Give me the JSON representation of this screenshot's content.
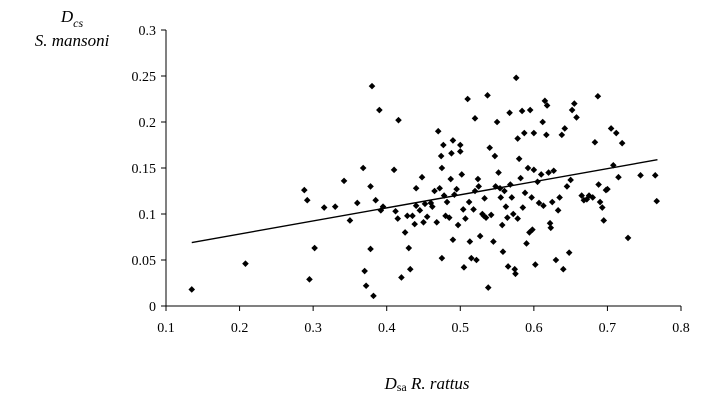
{
  "chart_data": {
    "type": "scatter",
    "title": "",
    "ylabel": {
      "main": "D",
      "sub": "cs",
      "species": "S. mansoni"
    },
    "xlabel": {
      "main": "D",
      "sub": "sa",
      "species": "R. rattus"
    },
    "xlim": [
      0.1,
      0.8
    ],
    "ylim": [
      0,
      0.3
    ],
    "x_ticks": [
      "0.1",
      "0.2",
      "0.3",
      "0.4",
      "0.5",
      "0.6",
      "0.7",
      "0.8"
    ],
    "y_ticks": [
      "0",
      "0.05",
      "0.1",
      "0.15",
      "0.2",
      "0.25",
      "0.3"
    ],
    "grid": false,
    "marker": "diamond",
    "marker_color": "#000000",
    "trendline": {
      "x": [
        0.135,
        0.768
      ],
      "y": [
        0.069,
        0.159
      ]
    },
    "points": [
      [
        0.135,
        0.018
      ],
      [
        0.208,
        0.046
      ],
      [
        0.288,
        0.126
      ],
      [
        0.292,
        0.115
      ],
      [
        0.295,
        0.029
      ],
      [
        0.302,
        0.063
      ],
      [
        0.315,
        0.107
      ],
      [
        0.33,
        0.108
      ],
      [
        0.342,
        0.136
      ],
      [
        0.35,
        0.093
      ],
      [
        0.36,
        0.112
      ],
      [
        0.368,
        0.15
      ],
      [
        0.37,
        0.038
      ],
      [
        0.372,
        0.022
      ],
      [
        0.378,
        0.062
      ],
      [
        0.378,
        0.13
      ],
      [
        0.38,
        0.239
      ],
      [
        0.382,
        0.011
      ],
      [
        0.385,
        0.115
      ],
      [
        0.39,
        0.213
      ],
      [
        0.392,
        0.104
      ],
      [
        0.395,
        0.108
      ],
      [
        0.41,
        0.148
      ],
      [
        0.412,
        0.103
      ],
      [
        0.415,
        0.095
      ],
      [
        0.416,
        0.202
      ],
      [
        0.42,
        0.031
      ],
      [
        0.425,
        0.08
      ],
      [
        0.428,
        0.098
      ],
      [
        0.43,
        0.063
      ],
      [
        0.432,
        0.04
      ],
      [
        0.435,
        0.098
      ],
      [
        0.438,
        0.089
      ],
      [
        0.44,
        0.109
      ],
      [
        0.44,
        0.128
      ],
      [
        0.445,
        0.104
      ],
      [
        0.448,
        0.14
      ],
      [
        0.45,
        0.091
      ],
      [
        0.452,
        0.111
      ],
      [
        0.455,
        0.097
      ],
      [
        0.46,
        0.112
      ],
      [
        0.462,
        0.108
      ],
      [
        0.465,
        0.125
      ],
      [
        0.468,
        0.091
      ],
      [
        0.47,
        0.19
      ],
      [
        0.472,
        0.128
      ],
      [
        0.474,
        0.163
      ],
      [
        0.475,
        0.15
      ],
      [
        0.475,
        0.052
      ],
      [
        0.477,
        0.175
      ],
      [
        0.478,
        0.12
      ],
      [
        0.48,
        0.098
      ],
      [
        0.482,
        0.113
      ],
      [
        0.485,
        0.096
      ],
      [
        0.487,
        0.138
      ],
      [
        0.488,
        0.166
      ],
      [
        0.49,
        0.18
      ],
      [
        0.49,
        0.072
      ],
      [
        0.492,
        0.121
      ],
      [
        0.495,
        0.127
      ],
      [
        0.497,
        0.088
      ],
      [
        0.5,
        0.175
      ],
      [
        0.5,
        0.168
      ],
      [
        0.502,
        0.143
      ],
      [
        0.504,
        0.105
      ],
      [
        0.505,
        0.042
      ],
      [
        0.507,
        0.095
      ],
      [
        0.51,
        0.225
      ],
      [
        0.512,
        0.113
      ],
      [
        0.513,
        0.07
      ],
      [
        0.515,
        0.052
      ],
      [
        0.518,
        0.105
      ],
      [
        0.52,
        0.204
      ],
      [
        0.52,
        0.125
      ],
      [
        0.522,
        0.05
      ],
      [
        0.524,
        0.138
      ],
      [
        0.525,
        0.13
      ],
      [
        0.527,
        0.076
      ],
      [
        0.53,
        0.1
      ],
      [
        0.532,
        0.098
      ],
      [
        0.533,
        0.117
      ],
      [
        0.535,
        0.096
      ],
      [
        0.537,
        0.229
      ],
      [
        0.538,
        0.02
      ],
      [
        0.54,
        0.172
      ],
      [
        0.542,
        0.099
      ],
      [
        0.545,
        0.07
      ],
      [
        0.547,
        0.163
      ],
      [
        0.548,
        0.13
      ],
      [
        0.55,
        0.2
      ],
      [
        0.552,
        0.145
      ],
      [
        0.554,
        0.128
      ],
      [
        0.555,
        0.118
      ],
      [
        0.557,
        0.088
      ],
      [
        0.558,
        0.059
      ],
      [
        0.56,
        0.125
      ],
      [
        0.562,
        0.108
      ],
      [
        0.564,
        0.096
      ],
      [
        0.565,
        0.043
      ],
      [
        0.567,
        0.21
      ],
      [
        0.568,
        0.132
      ],
      [
        0.57,
        0.118
      ],
      [
        0.572,
        0.1
      ],
      [
        0.574,
        0.04
      ],
      [
        0.575,
        0.035
      ],
      [
        0.576,
        0.248
      ],
      [
        0.578,
        0.182
      ],
      [
        0.578,
        0.095
      ],
      [
        0.58,
        0.16
      ],
      [
        0.582,
        0.139
      ],
      [
        0.584,
        0.212
      ],
      [
        0.585,
        0.107
      ],
      [
        0.587,
        0.188
      ],
      [
        0.588,
        0.123
      ],
      [
        0.59,
        0.068
      ],
      [
        0.592,
        0.15
      ],
      [
        0.594,
        0.08
      ],
      [
        0.595,
        0.213
      ],
      [
        0.597,
        0.118
      ],
      [
        0.598,
        0.083
      ],
      [
        0.6,
        0.188
      ],
      [
        0.6,
        0.148
      ],
      [
        0.602,
        0.045
      ],
      [
        0.605,
        0.135
      ],
      [
        0.607,
        0.112
      ],
      [
        0.61,
        0.143
      ],
      [
        0.612,
        0.2
      ],
      [
        0.613,
        0.109
      ],
      [
        0.615,
        0.223
      ],
      [
        0.617,
        0.186
      ],
      [
        0.618,
        0.218
      ],
      [
        0.62,
        0.145
      ],
      [
        0.622,
        0.09
      ],
      [
        0.623,
        0.085
      ],
      [
        0.625,
        0.113
      ],
      [
        0.627,
        0.147
      ],
      [
        0.63,
        0.05
      ],
      [
        0.633,
        0.104
      ],
      [
        0.635,
        0.118
      ],
      [
        0.638,
        0.186
      ],
      [
        0.64,
        0.04
      ],
      [
        0.642,
        0.193
      ],
      [
        0.645,
        0.13
      ],
      [
        0.648,
        0.058
      ],
      [
        0.65,
        0.137
      ],
      [
        0.652,
        0.213
      ],
      [
        0.655,
        0.22
      ],
      [
        0.658,
        0.205
      ],
      [
        0.665,
        0.12
      ],
      [
        0.668,
        0.115
      ],
      [
        0.672,
        0.116
      ],
      [
        0.675,
        0.12
      ],
      [
        0.68,
        0.118
      ],
      [
        0.683,
        0.178
      ],
      [
        0.687,
        0.228
      ],
      [
        0.688,
        0.132
      ],
      [
        0.69,
        0.113
      ],
      [
        0.693,
        0.107
      ],
      [
        0.695,
        0.093
      ],
      [
        0.698,
        0.126
      ],
      [
        0.7,
        0.127
      ],
      [
        0.705,
        0.193
      ],
      [
        0.708,
        0.153
      ],
      [
        0.712,
        0.188
      ],
      [
        0.715,
        0.14
      ],
      [
        0.72,
        0.177
      ],
      [
        0.728,
        0.074
      ],
      [
        0.745,
        0.142
      ],
      [
        0.765,
        0.142
      ],
      [
        0.767,
        0.114
      ]
    ]
  }
}
